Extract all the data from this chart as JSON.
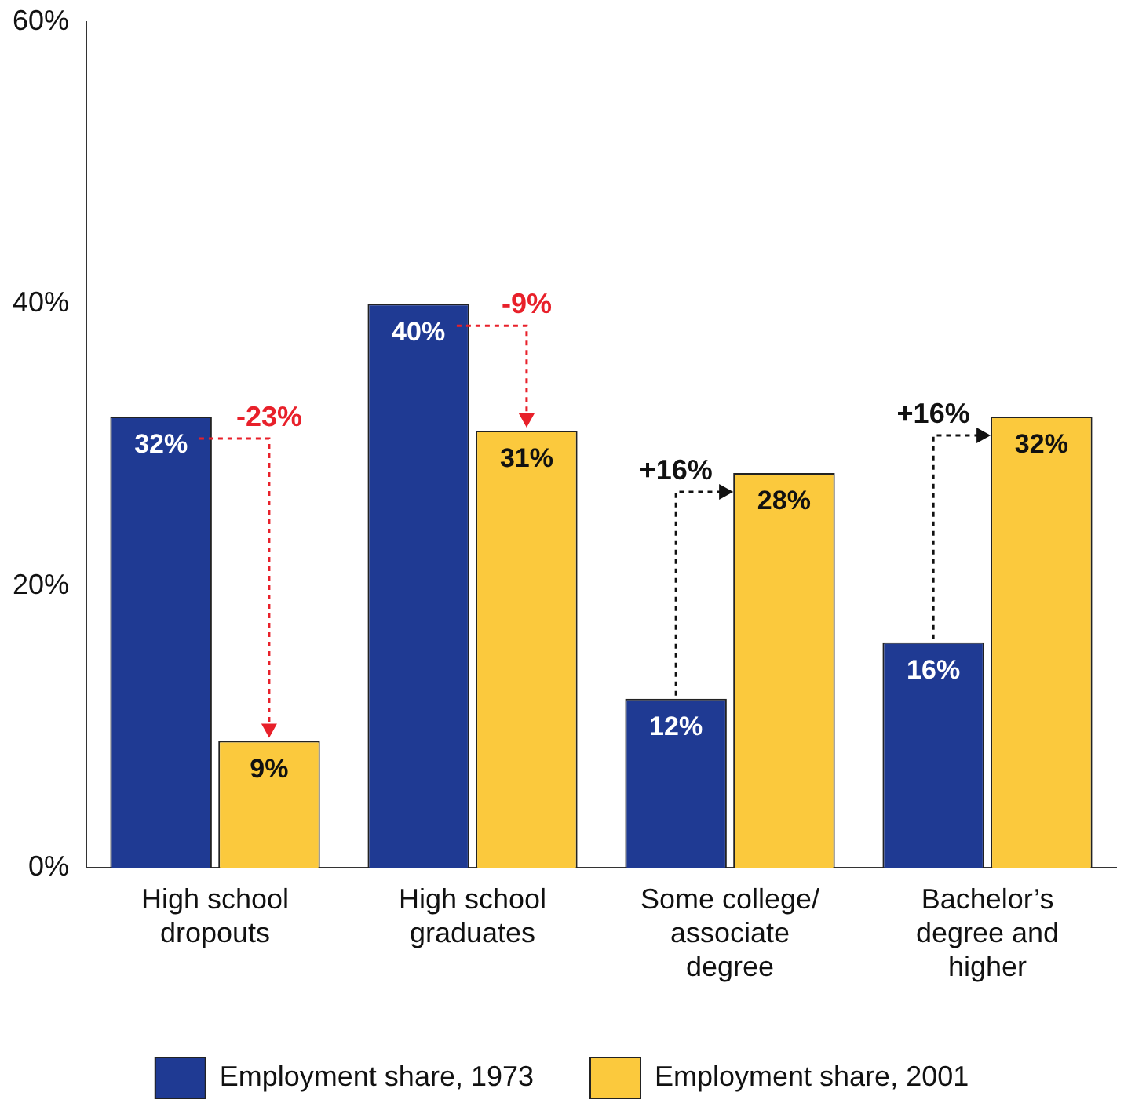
{
  "chart_data": {
    "type": "bar",
    "categories": [
      "High school dropouts",
      "High school graduates",
      "Some college/ associate degree",
      "Bachelor’s degree and higher"
    ],
    "series": [
      {
        "name": "Employment share, 1973",
        "color": "#1f3a93",
        "values": [
          32,
          40,
          12,
          16
        ],
        "value_labels": [
          "32%",
          "40%",
          "12%",
          "16%"
        ]
      },
      {
        "name": "Employment share, 2001",
        "color": "#fbc93d",
        "values": [
          9,
          31,
          28,
          32
        ],
        "value_labels": [
          "9%",
          "31%",
          "28%",
          "32%"
        ]
      }
    ],
    "ylim": [
      0,
      60
    ],
    "yticks": [
      {
        "value": 0,
        "label": "0%"
      },
      {
        "value": 20,
        "label": "20%"
      },
      {
        "value": 40,
        "label": "40%"
      },
      {
        "value": 60,
        "label": "60%"
      }
    ],
    "grid": false,
    "legend": "bottom",
    "annotations": [
      "-23%",
      "-9%",
      "+16%",
      "+16%"
    ]
  }
}
